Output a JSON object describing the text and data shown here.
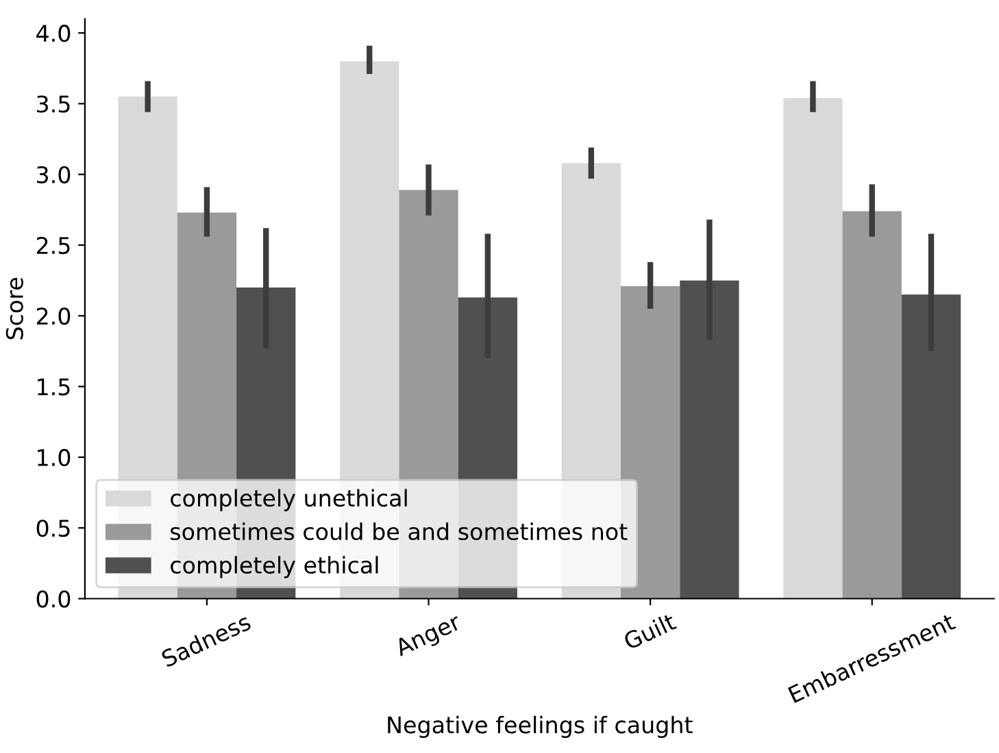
{
  "chart_data": {
    "type": "bar",
    "xlabel": "Negative feelings if caught",
    "ylabel": "Score",
    "categories": [
      "Sadness",
      "Anger",
      "Guilt",
      "Embarressment"
    ],
    "series": [
      {
        "name": "completely unethical",
        "color": "#d9d9d9",
        "values": [
          3.55,
          3.8,
          3.08,
          3.54
        ],
        "errors": [
          [
            3.44,
            3.66
          ],
          [
            3.71,
            3.91
          ],
          [
            2.97,
            3.19
          ],
          [
            3.44,
            3.66
          ]
        ]
      },
      {
        "name": "sometimes could be and sometimes not",
        "color": "#9a9a9a",
        "values": [
          2.73,
          2.89,
          2.21,
          2.74
        ],
        "errors": [
          [
            2.56,
            2.91
          ],
          [
            2.71,
            3.07
          ],
          [
            2.05,
            2.38
          ],
          [
            2.56,
            2.93
          ]
        ]
      },
      {
        "name": "completely ethical",
        "color": "#505050",
        "values": [
          2.2,
          2.13,
          2.25,
          2.15
        ],
        "errors": [
          [
            1.77,
            2.62
          ],
          [
            1.7,
            2.58
          ],
          [
            1.83,
            2.68
          ],
          [
            1.75,
            2.58
          ]
        ]
      }
    ],
    "ylim": [
      0,
      4.1
    ],
    "yticks": [
      {
        "value": 0,
        "label": "0.0"
      },
      {
        "value": 0.5,
        "label": "0.5"
      },
      {
        "value": 1,
        "label": "1.0"
      },
      {
        "value": 1.5,
        "label": "1.5"
      },
      {
        "value": 2,
        "label": "2.0"
      },
      {
        "value": 2.5,
        "label": "2.5"
      },
      {
        "value": 3,
        "label": "3.0"
      },
      {
        "value": 3.5,
        "label": "3.5"
      },
      {
        "value": 4,
        "label": "4.0"
      }
    ],
    "grid": false,
    "legend": "lower left"
  }
}
